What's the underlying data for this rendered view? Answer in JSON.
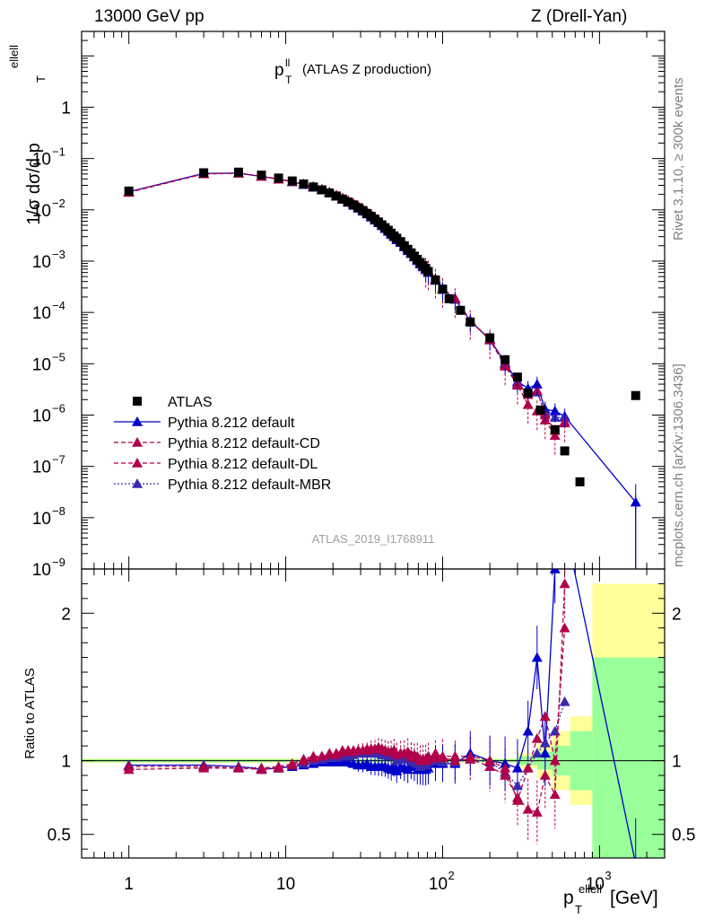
{
  "header": {
    "beam": "13000 GeV pp",
    "process": "Z (Drell-Yan)"
  },
  "side": {
    "rivet": "Rivet 3.1.10, ≥ 300k events",
    "mcplots": "mcplots.cern.ch [arXiv:1306.3436]"
  },
  "colors": {
    "atlas": "#000000",
    "default": "#0000cc",
    "cd": "#b0004a",
    "dl": "#b0004a",
    "mbr": "#3a2ab0",
    "band_green": "#99ff99",
    "band_yellow": "#ffff99"
  },
  "chart_data": {
    "type": "line",
    "title_main": "p",
    "title_sup": "ll",
    "title_sub": "T",
    "title_suffix": "(ATLAS Z production)",
    "watermark": "ATLAS_2019_I1768911",
    "ylabel_main": "1/σ dσ/d p",
    "ylabel_sup": "ellell",
    "ylabel_sub": "T",
    "ylabel_ratio": "Ratio to ATLAS",
    "xlabel_main": "p",
    "xlabel_sup": "ellell",
    "xlabel_sub": "T",
    "xlabel_unit": "[GeV]",
    "xscale": "log",
    "yscale_main": "log",
    "xlim": [
      0.5,
      2600
    ],
    "ylim_main": [
      1e-09,
      30
    ],
    "ylim_ratio": [
      0.34,
      2.3
    ],
    "x_tick_labels": [
      "1",
      "10",
      "10",
      "10"
    ],
    "x_tick_exps": [
      "",
      "",
      "2",
      "3"
    ],
    "y_tick_labels": [
      "1",
      "10",
      "10",
      "10",
      "10",
      "10",
      "10",
      "10",
      "10",
      "10"
    ],
    "y_tick_exps": [
      "",
      "−1",
      "−2",
      "−3",
      "−4",
      "−5",
      "−6",
      "−7",
      "−8",
      "−9"
    ],
    "ratio_tick_labels": [
      "2",
      "1",
      "0.5"
    ],
    "legend": [
      "ATLAS",
      "Pythia 8.212 default",
      "Pythia 8.212 default-CD",
      "Pythia 8.212 default-DL",
      "Pythia 8.212 default-MBR"
    ],
    "x": [
      1,
      3,
      5,
      7,
      9,
      11,
      13,
      15,
      17,
      19,
      21,
      23,
      25,
      27,
      29,
      31,
      33,
      35,
      37,
      39,
      41,
      43,
      45,
      47,
      49,
      51,
      54,
      57,
      60,
      63,
      66,
      69,
      72,
      75,
      78,
      81,
      90,
      100,
      110,
      130,
      150,
      175,
      200,
      250,
      300,
      350,
      400,
      450,
      500,
      600,
      800,
      1800
    ],
    "atlas": [
      0.0232,
      0.0527,
      0.0543,
      0.0475,
      0.0416,
      0.0365,
      0.0319,
      0.0279,
      0.0245,
      0.0213,
      0.0186,
      0.0162,
      0.0142,
      0.0125,
      0.011,
      0.0097,
      0.0085,
      0.0075,
      0.0066,
      0.0058,
      0.0051,
      0.0045,
      0.004,
      0.0035,
      0.0031,
      0.0028,
      0.0024,
      0.002,
      0.0017,
      0.00145,
      0.00125,
      0.00108,
      0.00094,
      0.00082,
      0.00072,
      0.00063,
      0.00043,
      0.000285,
      0.000185,
      0.00011,
      6.5e-05,
      3.2e-05,
      1.2e-05,
      5.5e-06,
      2.7e-06,
      1.25e-06,
      5.2e-07,
      2e-07,
      5e-08,
      2.4e-06
    ],
    "atlas_x": [
      1,
      3,
      5,
      7,
      9,
      11,
      13,
      15,
      17,
      19,
      21,
      23,
      25,
      27,
      29,
      31,
      33,
      35,
      37,
      39,
      41,
      43,
      45,
      47,
      49,
      51,
      54,
      57,
      60,
      63,
      66,
      69,
      72,
      75,
      78,
      81,
      90,
      100,
      110,
      130,
      150,
      200,
      250,
      300,
      350,
      420,
      520,
      600,
      750,
      1700
    ],
    "mc_x": [
      1,
      3,
      5,
      7,
      9,
      11,
      13,
      15,
      17,
      19,
      21,
      23,
      25,
      27,
      29,
      31,
      33,
      35,
      37,
      39,
      41,
      43,
      45,
      47,
      49,
      51,
      54,
      57,
      60,
      63,
      66,
      69,
      72,
      75,
      78,
      81,
      90,
      100,
      120,
      150,
      200,
      250,
      300,
      350,
      400,
      450,
      520,
      600,
      1700
    ],
    "default": [
      0.0225,
      0.0512,
      0.052,
      0.0448,
      0.0395,
      0.0352,
      0.031,
      0.0275,
      0.0243,
      0.0212,
      0.0184,
      0.016,
      0.014,
      0.0122,
      0.0107,
      0.0094,
      0.0083,
      0.0072,
      0.0063,
      0.0056,
      0.0049,
      0.0043,
      0.0038,
      0.0033,
      0.003,
      0.0026,
      0.0023,
      0.0019,
      0.0016,
      0.0014,
      0.0012,
      0.00102,
      0.00088,
      0.00077,
      0.00068,
      0.0006,
      0.00042,
      0.00028,
      0.00018,
      6.8e-05,
      3e-05,
      1.05e-05,
      4.5e-06,
      3.3e-06,
      4e-06,
      1.3e-06,
      1.2e-06,
      9.5e-07,
      2e-08
    ],
    "cd": [
      0.0218,
      0.05,
      0.0515,
      0.0448,
      0.0396,
      0.0356,
      0.0318,
      0.0284,
      0.0252,
      0.0222,
      0.0194,
      0.0171,
      0.0151,
      0.0133,
      0.0118,
      0.0104,
      0.0091,
      0.0081,
      0.0071,
      0.0063,
      0.0055,
      0.0048,
      0.0042,
      0.0037,
      0.0033,
      0.0029,
      0.0025,
      0.0021,
      0.0018,
      0.0015,
      0.00128,
      0.0011,
      0.00094,
      0.00082,
      0.00072,
      0.00064,
      0.00044,
      0.00029,
      0.000185,
      6.9e-05,
      2.9e-05,
      9e-06,
      3.8e-06,
      1.6e-06,
      1.2e-06,
      8e-07,
      4e-07,
      7e-07,
      null
    ],
    "dl": [
      0.0222,
      0.0505,
      0.0518,
      0.045,
      0.0398,
      0.0357,
      0.0319,
      0.0285,
      0.0253,
      0.0223,
      0.0195,
      0.0172,
      0.0152,
      0.0134,
      0.0118,
      0.0104,
      0.0092,
      0.0081,
      0.0071,
      0.0063,
      0.0055,
      0.0048,
      0.0042,
      0.0037,
      0.0033,
      0.0029,
      0.0025,
      0.0021,
      0.0018,
      0.0015,
      0.0013,
      0.00111,
      0.00095,
      0.00083,
      0.00073,
      0.00065,
      0.00045,
      0.000295,
      0.00019,
      7e-05,
      3e-05,
      9.5e-06,
      4e-06,
      2.5e-06,
      3e-06,
      1e-06,
      5e-07,
      7.5e-07,
      null
    ],
    "mbr": [
      0.0226,
      0.0512,
      0.052,
      0.0449,
      0.0396,
      0.0354,
      0.0314,
      0.028,
      0.0248,
      0.0218,
      0.019,
      0.0167,
      0.0147,
      0.013,
      0.0115,
      0.0101,
      0.0089,
      0.0079,
      0.0069,
      0.0061,
      0.0053,
      0.0047,
      0.0041,
      0.0036,
      0.0032,
      0.0028,
      0.0024,
      0.002,
      0.00172,
      0.00146,
      0.00124,
      0.00106,
      0.0009,
      0.00079,
      0.0007,
      0.00062,
      0.00043,
      0.00028,
      0.00018,
      6.8e-05,
      2.9e-05,
      1e-05,
      4.2e-06,
      2.5e-06,
      2.8e-06,
      1.1e-06,
      9e-07,
      9e-07,
      null
    ],
    "ratio_default": [
      0.97,
      0.97,
      0.96,
      0.94,
      0.95,
      0.96,
      0.97,
      0.98,
      0.99,
      0.99,
      0.99,
      0.99,
      0.99,
      0.98,
      0.97,
      0.97,
      0.98,
      0.96,
      0.96,
      0.96,
      0.96,
      0.96,
      0.95,
      0.94,
      0.97,
      0.93,
      0.96,
      0.95,
      0.94,
      0.97,
      0.96,
      0.94,
      0.94,
      0.94,
      0.94,
      0.95,
      0.98,
      0.98,
      0.98,
      1.05,
      1.0,
      0.98,
      0.95,
      1.2,
      1.7,
      1.05,
      2.3,
      2.6,
      0.3
    ],
    "ratio_cd": [
      0.94,
      0.95,
      0.95,
      0.94,
      0.95,
      0.97,
      1.0,
      1.02,
      1.03,
      1.04,
      1.04,
      1.06,
      1.06,
      1.06,
      1.07,
      1.07,
      1.07,
      1.08,
      1.08,
      1.09,
      1.08,
      1.07,
      1.06,
      1.06,
      1.07,
      1.04,
      1.05,
      1.05,
      1.06,
      1.03,
      1.02,
      1.02,
      1.0,
      1.0,
      1.0,
      1.01,
      1.02,
      1.02,
      1.0,
      1.01,
      0.96,
      0.9,
      0.75,
      0.67,
      0.65,
      0.9,
      0.77,
      2.2,
      null
    ],
    "ratio_dl": [
      0.96,
      0.96,
      0.95,
      0.95,
      0.96,
      0.98,
      1.01,
      1.03,
      1.03,
      1.05,
      1.05,
      1.07,
      1.07,
      1.07,
      1.07,
      1.07,
      1.08,
      1.08,
      1.08,
      1.08,
      1.08,
      1.07,
      1.06,
      1.06,
      1.07,
      1.04,
      1.05,
      1.05,
      1.06,
      1.04,
      1.04,
      1.03,
      1.01,
      1.01,
      1.01,
      1.03,
      1.05,
      1.03,
      1.03,
      1.03,
      1.0,
      0.95,
      0.73,
      0.95,
      1.15,
      1.3,
      1.0,
      1.9,
      null
    ],
    "ratio_mbr": [
      0.97,
      0.97,
      0.96,
      0.95,
      0.95,
      0.97,
      0.98,
      1.0,
      1.01,
      1.02,
      1.02,
      1.03,
      1.03,
      1.04,
      1.05,
      1.05,
      1.05,
      1.06,
      1.05,
      1.05,
      1.04,
      1.04,
      1.03,
      1.03,
      1.03,
      1.0,
      1.02,
      1.01,
      1.02,
      1.0,
      0.99,
      0.98,
      0.96,
      0.97,
      0.97,
      0.99,
      1.0,
      0.99,
      0.99,
      1.01,
      0.99,
      0.92,
      0.83,
      0.95,
      1.05,
      1.12,
      1.2,
      1.4,
      null
    ],
    "bands": [
      {
        "x0": 0.5,
        "x1": 300,
        "stat": 0.01,
        "tot": 0.015
      },
      {
        "x0": 300,
        "x1": 400,
        "stat": 0.03,
        "tot": 0.05
      },
      {
        "x0": 400,
        "x1": 500,
        "stat": 0.06,
        "tot": 0.12
      },
      {
        "x0": 500,
        "x1": 650,
        "stat": 0.1,
        "tot": 0.2
      },
      {
        "x0": 650,
        "x1": 900,
        "stat": 0.2,
        "tot": 0.3
      },
      {
        "x0": 900,
        "x1": 2600,
        "stat": 0.7,
        "tot": 1.2
      }
    ]
  }
}
